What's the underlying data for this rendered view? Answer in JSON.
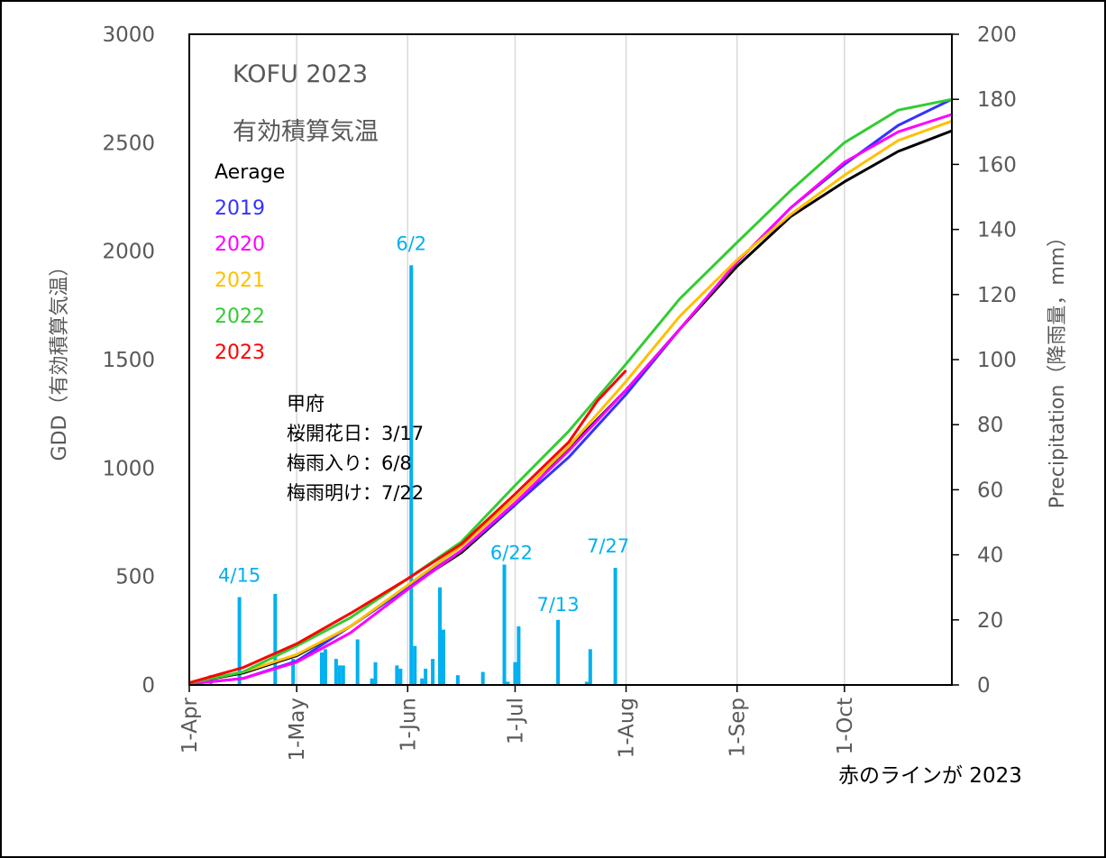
{
  "chart_data": {
    "type": "line",
    "title": "KOFU 2023",
    "subtitle": "有効積算気温",
    "ylabel": "GDD（有効積算気温）",
    "y2label": "Precipitation（降雨量，mm）",
    "ylim": [
      0,
      3000
    ],
    "y2lim": [
      0,
      200
    ],
    "yticks": [
      0,
      500,
      1000,
      1500,
      2000,
      2500,
      3000
    ],
    "y2ticks": [
      0,
      20,
      40,
      60,
      80,
      100,
      120,
      140,
      160,
      180,
      200
    ],
    "xlim": [
      "1-Apr",
      "31-Oct"
    ],
    "xticks": [
      {
        "label": "1-Apr",
        "day": 0
      },
      {
        "label": "1-May",
        "day": 30
      },
      {
        "label": "1-Jun",
        "day": 61
      },
      {
        "label": "1-Jul",
        "day": 91
      },
      {
        "label": "1-Aug",
        "day": 122
      },
      {
        "label": "1-Sep",
        "day": 153
      },
      {
        "label": "1-Oct",
        "day": 183
      }
    ],
    "grid": "vertical",
    "legend_title": "Aerage",
    "series": [
      {
        "name": "Aerage",
        "color": "#000000",
        "x": [
          0,
          15,
          30,
          45,
          61,
          76,
          91,
          106,
          122,
          137,
          153,
          168,
          183,
          198,
          213
        ],
        "y": [
          10,
          55,
          135,
          270,
          450,
          610,
          830,
          1090,
          1360,
          1640,
          1930,
          2160,
          2320,
          2460,
          2555
        ]
      },
      {
        "name": "2019",
        "color": "#3333ff",
        "x": [
          0,
          15,
          30,
          45,
          61,
          76,
          91,
          106,
          122,
          137,
          153,
          168,
          183,
          198,
          213
        ],
        "y": [
          5,
          30,
          110,
          270,
          450,
          620,
          830,
          1050,
          1340,
          1640,
          1950,
          2200,
          2400,
          2580,
          2700
        ]
      },
      {
        "name": "2020",
        "color": "#ff00ff",
        "x": [
          0,
          15,
          30,
          45,
          61,
          76,
          91,
          106,
          122,
          137,
          153,
          168,
          183,
          198,
          213
        ],
        "y": [
          5,
          30,
          105,
          240,
          440,
          620,
          840,
          1080,
          1360,
          1640,
          1950,
          2200,
          2410,
          2550,
          2630
        ]
      },
      {
        "name": "2021",
        "color": "#ffc000",
        "x": [
          0,
          15,
          30,
          45,
          61,
          76,
          91,
          106,
          122,
          137,
          153,
          168,
          183,
          198,
          213
        ],
        "y": [
          10,
          60,
          140,
          270,
          460,
          640,
          860,
          1100,
          1400,
          1700,
          1960,
          2170,
          2350,
          2510,
          2600
        ]
      },
      {
        "name": "2022",
        "color": "#33cc33",
        "x": [
          0,
          15,
          30,
          45,
          61,
          76,
          91,
          106,
          122,
          137,
          153,
          168,
          183,
          198,
          213
        ],
        "y": [
          10,
          60,
          180,
          310,
          490,
          660,
          920,
          1170,
          1480,
          1780,
          2040,
          2280,
          2500,
          2650,
          2700
        ]
      },
      {
        "name": "2023",
        "color": "#ff0000",
        "x": [
          0,
          15,
          30,
          45,
          61,
          76,
          91,
          106,
          114,
          122
        ],
        "y": [
          10,
          80,
          190,
          330,
          490,
          650,
          880,
          1120,
          1310,
          1450
        ]
      }
    ],
    "precipitation": {
      "axis": "y2",
      "color": "#00b0f0",
      "x": [
        6,
        14,
        24,
        29,
        37,
        38,
        41,
        42,
        43,
        47,
        51,
        52,
        58,
        59,
        62,
        63,
        65,
        66,
        68,
        70,
        71,
        75,
        82,
        88,
        89,
        91,
        92,
        103,
        111,
        112,
        119
      ],
      "y": [
        3,
        27,
        28,
        8,
        10,
        11,
        8,
        6,
        6,
        14,
        2,
        7,
        6,
        5,
        129,
        12,
        2,
        5,
        8,
        30,
        17,
        3,
        4,
        37,
        1,
        7,
        18,
        20,
        1,
        11,
        36
      ]
    },
    "annotations": [
      {
        "text": "4/15",
        "day": 14,
        "value": 30
      },
      {
        "text": "6/2",
        "day": 62,
        "value": 132
      },
      {
        "text": "6/22",
        "day": 90,
        "value": 37
      },
      {
        "text": "7/13",
        "day": 103,
        "value": 21
      },
      {
        "text": "7/27",
        "day": 117,
        "value": 39
      }
    ],
    "notes": [
      "甲府",
      "桜開花日：3/17",
      "梅雨入り：6/8",
      "梅雨明け：7/22"
    ],
    "caption": "赤のラインが 2023"
  }
}
